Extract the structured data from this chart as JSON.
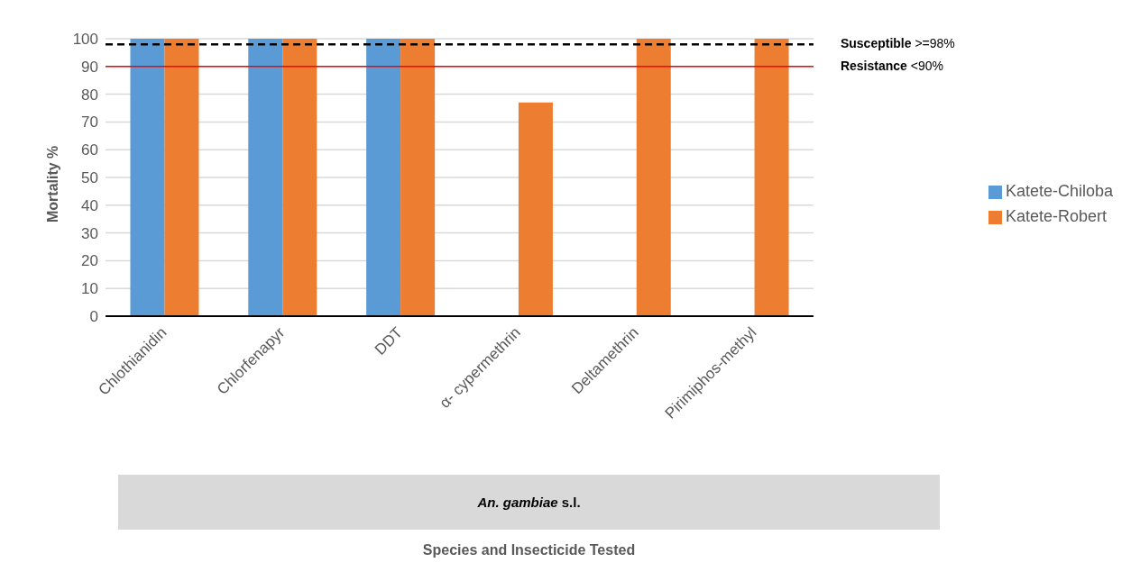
{
  "chart_data": {
    "type": "bar",
    "ylabel": "Mortality %",
    "categories": [
      "Chlothianidin",
      "Chlorfenapyr",
      "DDT",
      "α- cypermethrin",
      "Deltamethrin",
      "Pirimiphos-methyl"
    ],
    "series": [
      {
        "name": "Katete-Chiloba",
        "color": "#5b9bd5",
        "values": [
          100,
          100,
          100,
          null,
          null,
          null
        ]
      },
      {
        "name": "Katete-Robert",
        "color": "#ed7d31",
        "values": [
          100,
          100,
          100,
          77,
          100,
          100
        ]
      }
    ],
    "ylim": [
      0,
      100
    ],
    "yticks": [
      0,
      10,
      20,
      30,
      40,
      50,
      60,
      70,
      80,
      90,
      100
    ],
    "grid": "y",
    "legend": "right",
    "ref_lines": [
      {
        "axis": "y",
        "value": 98,
        "label": "Susceptible >=98%",
        "color": "#000000",
        "line_style": "dashed"
      },
      {
        "axis": "y",
        "value": 90,
        "label": "Resistance <90%",
        "color": "#ff0000",
        "line_style": "solid"
      }
    ],
    "annotations": [
      "An. gambiae s.l.",
      "Species and Insecticide Tested"
    ]
  }
}
